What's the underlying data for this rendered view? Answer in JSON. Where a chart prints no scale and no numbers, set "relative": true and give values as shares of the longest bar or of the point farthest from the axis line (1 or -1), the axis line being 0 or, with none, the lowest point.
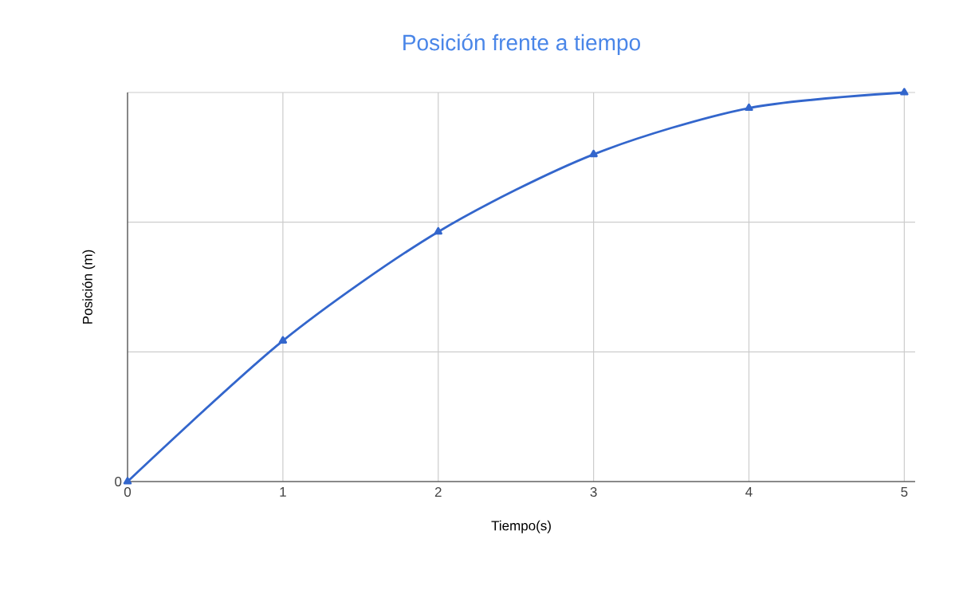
{
  "chart_data": {
    "type": "line",
    "title": "Posición frente a tiempo",
    "xlabel": "Tiempo(s)",
    "ylabel": "Posición (m)",
    "relative": true,
    "x": [
      0,
      1,
      2,
      3,
      4,
      5
    ],
    "series": [
      {
        "color": "#3366cc",
        "values": [
          0,
          0.362,
          0.642,
          0.841,
          0.96,
          1
        ]
      }
    ],
    "xlim": [
      0,
      5.07
    ],
    "xticks": [
      0,
      1,
      2,
      3,
      4,
      5
    ],
    "grid": true,
    "marker": "triangle",
    "line_style": "solid",
    "annotations": [
      "0"
    ]
  }
}
